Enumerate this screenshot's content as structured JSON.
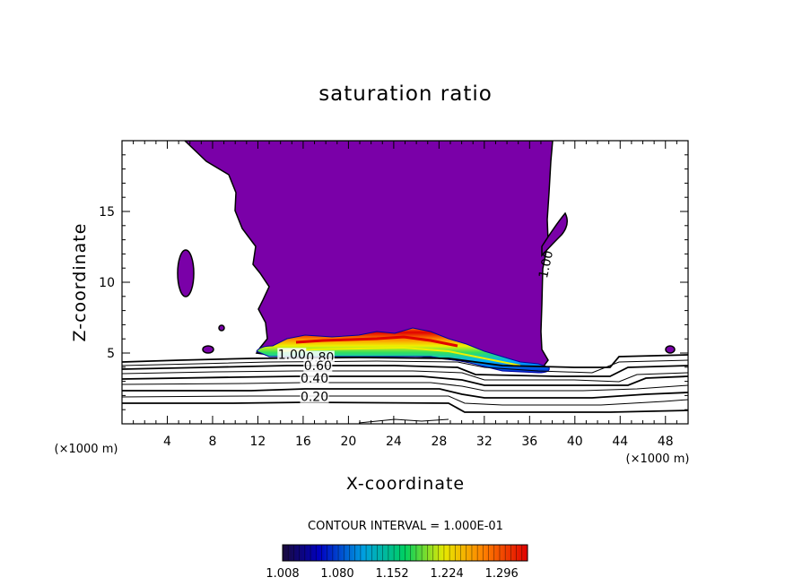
{
  "chart_data": {
    "type": "contour",
    "title": "saturation ratio",
    "xlabel": "X-coordinate",
    "ylabel": "Z-coordinate",
    "x_unit_label": "(×1000 m)",
    "x_unit_label_right": "(×1000 m)",
    "xlim": [
      0,
      50
    ],
    "ylim": [
      0,
      20
    ],
    "x_ticks": [
      4,
      8,
      12,
      16,
      20,
      24,
      28,
      32,
      36,
      40,
      44,
      48
    ],
    "y_ticks": [
      5,
      10,
      15
    ],
    "contour_interval_text": "CONTOUR INTERVAL = 1.000E-01",
    "contour_labels": [
      {
        "text": "1.00",
        "x": 15.0,
        "y": 4.6
      },
      {
        "text": "0.80",
        "x": 17.5,
        "y": 4.4
      },
      {
        "text": "0.60",
        "x": 17.3,
        "y": 3.8
      },
      {
        "text": "0.40",
        "x": 17.0,
        "y": 2.9
      },
      {
        "text": "0.20",
        "x": 17.0,
        "y": 1.6
      },
      {
        "text": "1.00",
        "x": 37.8,
        "y": 11.2
      }
    ],
    "colorbar": {
      "ticks": [
        "1.008",
        "1.080",
        "1.152",
        "1.224",
        "1.296"
      ],
      "range": [
        1.008,
        1.33
      ],
      "colors": [
        "#1a0a3a",
        "#0000c0",
        "#00a0e0",
        "#00d060",
        "#e8e800",
        "#ff8000",
        "#e00000"
      ]
    },
    "regions": {
      "saturated_fill_color": "#7a00a8",
      "saturated_region_x": [
        12,
        38
      ],
      "saturated_region_y": [
        3.8,
        20
      ],
      "supersaturation_band_x": [
        12,
        38
      ],
      "supersaturation_band_y": [
        3.9,
        6.2
      ],
      "isolated_cells": [
        {
          "x": 5.6,
          "y": 10.5
        },
        {
          "x": 7.3,
          "y": 5.3
        },
        {
          "x": 8.7,
          "y": 6.6
        },
        {
          "x": 48.5,
          "y": 5.2
        }
      ]
    }
  }
}
